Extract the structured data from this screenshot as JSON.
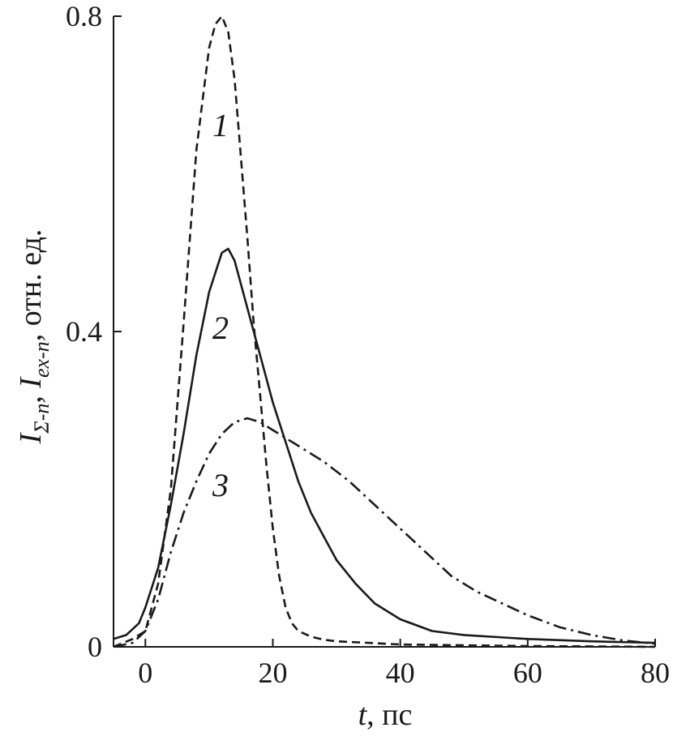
{
  "chart_data": {
    "type": "line",
    "x_ticks": [
      "0",
      "20",
      "40",
      "60",
      "80"
    ],
    "y_ticks": [
      "0",
      "0.4",
      "0.8"
    ],
    "xlim": [
      -5,
      80
    ],
    "ylim": [
      0,
      0.8
    ],
    "grid": false,
    "xlabel": {
      "var": "t",
      "rest": ", пс"
    },
    "ylabel": {
      "part1_var": "I",
      "part1_sub": "Σ-n",
      "sep": ", ",
      "part2_var": "I",
      "part2_sub": "ex-n",
      "rest": ", отн. ед."
    },
    "series": [
      {
        "label": "1",
        "style": "dashed",
        "x": [
          -5,
          -2,
          0,
          2,
          4,
          6,
          8,
          10,
          11,
          12,
          13,
          14,
          15,
          16,
          17,
          18,
          19,
          20,
          21,
          22,
          23,
          24,
          26,
          28,
          30,
          35,
          40,
          50,
          60,
          80
        ],
        "y": [
          0.0,
          0.01,
          0.02,
          0.08,
          0.2,
          0.41,
          0.63,
          0.76,
          0.79,
          0.8,
          0.78,
          0.72,
          0.62,
          0.52,
          0.41,
          0.32,
          0.23,
          0.15,
          0.09,
          0.05,
          0.03,
          0.02,
          0.013,
          0.009,
          0.007,
          0.005,
          0.003,
          0.002,
          0.001,
          0.0
        ]
      },
      {
        "label": "2",
        "style": "solid",
        "x": [
          -5,
          -3,
          -1,
          0,
          2,
          4,
          6,
          8,
          10,
          12,
          13,
          14,
          16,
          18,
          20,
          22,
          24,
          26,
          28,
          30,
          33,
          36,
          40,
          45,
          50,
          60,
          70,
          80
        ],
        "y": [
          0.01,
          0.015,
          0.03,
          0.05,
          0.1,
          0.18,
          0.27,
          0.37,
          0.45,
          0.5,
          0.505,
          0.49,
          0.43,
          0.37,
          0.31,
          0.26,
          0.21,
          0.17,
          0.14,
          0.11,
          0.08,
          0.055,
          0.035,
          0.02,
          0.015,
          0.01,
          0.007,
          0.005
        ]
      },
      {
        "label": "3",
        "style": "dash-dot",
        "x": [
          -5,
          -2,
          0,
          2,
          4,
          6,
          8,
          10,
          12,
          14,
          16,
          18,
          20,
          24,
          28,
          32,
          36,
          40,
          44,
          48,
          52,
          56,
          60,
          65,
          70,
          75,
          80
        ],
        "y": [
          0.0,
          0.005,
          0.02,
          0.06,
          0.12,
          0.17,
          0.21,
          0.245,
          0.27,
          0.285,
          0.29,
          0.285,
          0.275,
          0.255,
          0.235,
          0.21,
          0.18,
          0.15,
          0.12,
          0.09,
          0.07,
          0.055,
          0.04,
          0.025,
          0.015,
          0.008,
          0.004
        ]
      }
    ]
  }
}
